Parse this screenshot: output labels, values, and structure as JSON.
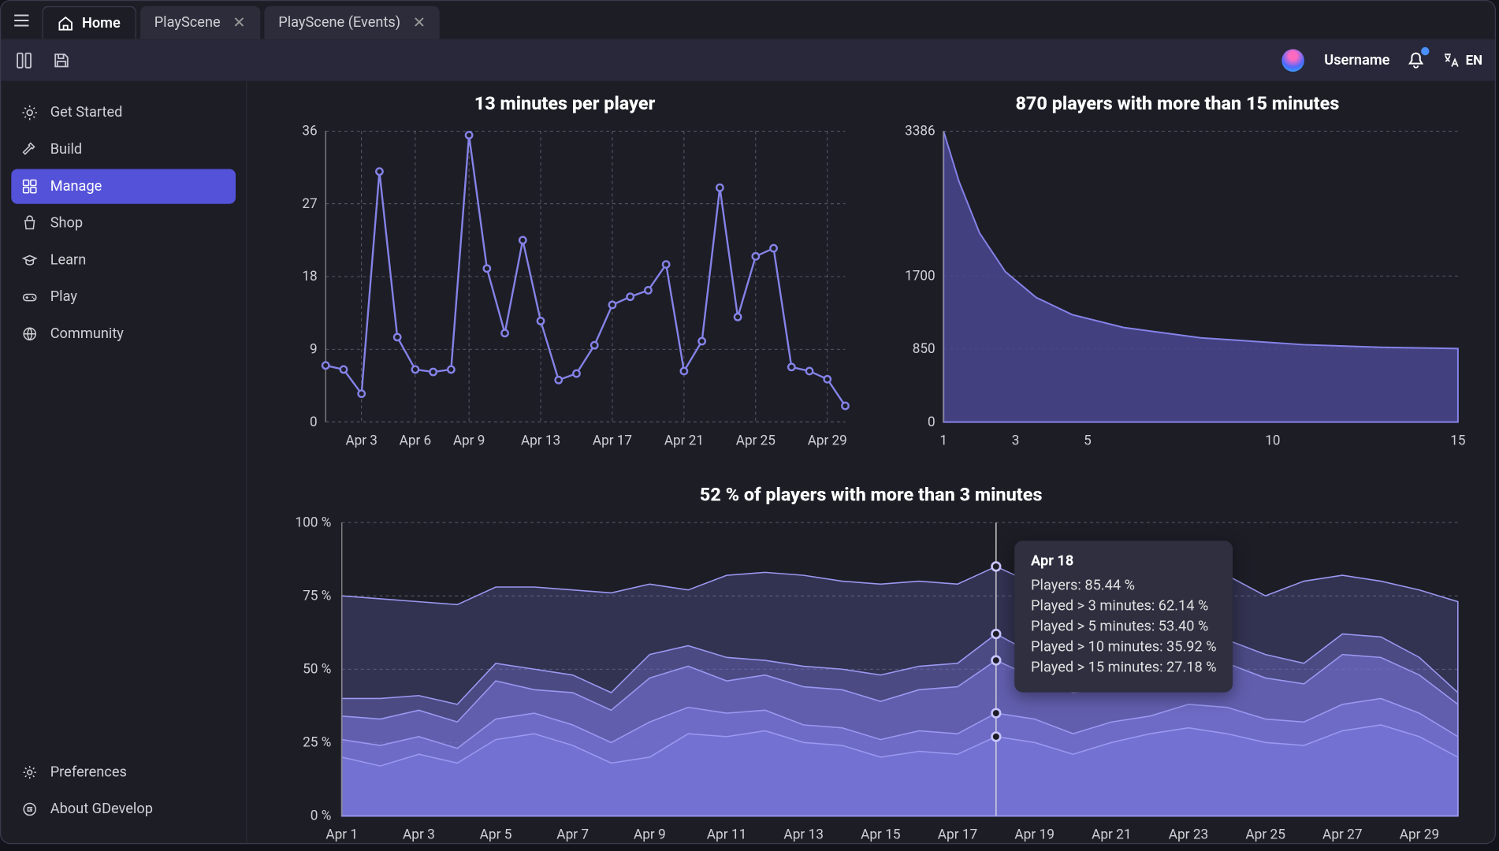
{
  "colors": {
    "bg": "#1d1d26",
    "panel": "#28283a",
    "line": "#7a78e8",
    "fill1": "#4e4a9a",
    "grid": "#6a6a7a",
    "axis_text": "#d0d0d5",
    "tooltip_bg": "#2f2f40",
    "accent": "#5452d8"
  },
  "topbar": {
    "tabs": [
      {
        "label": "Home",
        "active": true,
        "icon": "home"
      },
      {
        "label": "PlayScene",
        "active": false
      },
      {
        "label": "PlayScene (Events)",
        "active": false
      }
    ]
  },
  "header": {
    "username": "Username",
    "lang": "EN"
  },
  "sidebar": {
    "items": [
      {
        "icon": "sun",
        "label": "Get Started"
      },
      {
        "icon": "hammer",
        "label": "Build"
      },
      {
        "icon": "dashboard",
        "label": "Manage",
        "active": true
      },
      {
        "icon": "bag",
        "label": "Shop"
      },
      {
        "icon": "cap",
        "label": "Learn"
      },
      {
        "icon": "gamepad",
        "label": "Play"
      },
      {
        "icon": "globe",
        "label": "Community"
      }
    ],
    "footer": [
      {
        "icon": "gear",
        "label": "Preferences"
      },
      {
        "icon": "gdevelop",
        "label": "About GDevelop"
      }
    ]
  },
  "charts": {
    "minutes_per_player": {
      "type": "line",
      "title": "13 minutes per player",
      "x_labels": [
        "Apr 3",
        "Apr 6",
        "Apr 9",
        "Apr 13",
        "Apr 17",
        "Apr 21",
        "Apr 25",
        "Apr 29"
      ],
      "x_positions_pct": [
        7,
        19,
        30,
        46,
        62,
        77,
        92,
        108
      ],
      "ylim": [
        0,
        36
      ],
      "ytick_step": 9,
      "line_color": "#8583e8",
      "marker_color": "#8583e8",
      "marker_fill": "#1d1d26",
      "values": [
        7,
        6.5,
        3.5,
        31,
        10.5,
        6.5,
        6.2,
        6.5,
        35.5,
        19,
        11,
        22.5,
        12.5,
        5.2,
        6,
        9.5,
        14.5,
        15.5,
        16.3,
        19.5,
        6.3,
        10,
        29,
        13,
        20.5,
        21.5,
        6.8,
        6.3,
        5.3,
        2
      ]
    },
    "players_distribution": {
      "type": "area",
      "title": "870 players with more than 15 minutes",
      "x_labels": [
        "1",
        "3",
        "5",
        "10",
        "15"
      ],
      "x_positions": [
        0,
        0.14,
        0.28,
        0.64,
        1.0
      ],
      "ylim": [
        0,
        3386
      ],
      "yticks": [
        0,
        850,
        1700,
        3386
      ],
      "fill_color": "#4a4690",
      "line_color": "#8583e8",
      "points": [
        [
          0,
          3386
        ],
        [
          0.03,
          2800
        ],
        [
          0.07,
          2200
        ],
        [
          0.12,
          1750
        ],
        [
          0.18,
          1450
        ],
        [
          0.25,
          1250
        ],
        [
          0.35,
          1100
        ],
        [
          0.5,
          980
        ],
        [
          0.7,
          900
        ],
        [
          0.85,
          870
        ],
        [
          1.0,
          855
        ]
      ]
    },
    "retention": {
      "type": "stacked-area",
      "title": "52 % of players with more than 3 minutes",
      "x_labels": [
        "Apr 1",
        "Apr 3",
        "Apr 5",
        "Apr 7",
        "Apr 9",
        "Apr 11",
        "Apr 13",
        "Apr 15",
        "Apr 17",
        "Apr 19",
        "Apr 21",
        "Apr 23",
        "Apr 25",
        "Apr 27",
        "Apr 29"
      ],
      "ylim": [
        0,
        100
      ],
      "ytick_step": 25,
      "y_suffix": " %",
      "line_color": "#9a98f0",
      "fill_base": "#7572d4",
      "series": [
        {
          "name": "Players",
          "values": [
            75,
            74,
            73,
            72,
            78,
            78,
            77,
            76,
            79,
            77,
            82,
            83,
            82,
            80,
            79,
            80,
            79,
            85,
            79,
            80,
            82,
            81,
            84,
            82,
            75,
            80,
            82,
            80,
            77,
            73
          ]
        },
        {
          "name": "Played > 3 minutes",
          "values": [
            40,
            40,
            41,
            38,
            52,
            50,
            48,
            42,
            55,
            58,
            54,
            53,
            51,
            50,
            48,
            51,
            52,
            62,
            55,
            50,
            53,
            55,
            58,
            60,
            55,
            52,
            62,
            61,
            54,
            42
          ]
        },
        {
          "name": "Played > 5 minutes",
          "values": [
            34,
            33,
            36,
            32,
            46,
            43,
            42,
            36,
            47,
            51,
            46,
            48,
            44,
            43,
            39,
            43,
            44,
            53,
            47,
            42,
            44,
            46,
            50,
            52,
            47,
            45,
            55,
            54,
            48,
            38
          ]
        },
        {
          "name": "Played > 10 minutes",
          "values": [
            26,
            24,
            27,
            23,
            33,
            35,
            31,
            25,
            32,
            37,
            35,
            36,
            31,
            30,
            26,
            29,
            28,
            35,
            33,
            28,
            32,
            34,
            38,
            37,
            33,
            32,
            38,
            40,
            35,
            27
          ]
        },
        {
          "name": "Played > 15 minutes",
          "values": [
            20,
            17,
            21,
            18,
            26,
            28,
            24,
            18,
            20,
            28,
            27,
            29,
            25,
            24,
            20,
            22,
            21,
            27,
            25,
            21,
            25,
            28,
            30,
            28,
            25,
            24,
            29,
            31,
            27,
            20
          ]
        }
      ],
      "tooltip": {
        "day_index": 17,
        "title": "Apr 18",
        "lines": [
          "Players: 85.44 %",
          "Played > 3 minutes: 62.14 %",
          "Played > 5 minutes: 53.40 %",
          "Played > 10 minutes: 35.92 %",
          "Played > 15 minutes: 27.18 %"
        ]
      }
    }
  }
}
